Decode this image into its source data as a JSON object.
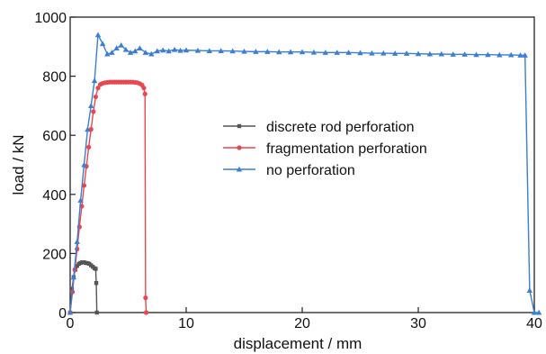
{
  "chart_data": {
    "type": "line",
    "title": "",
    "xlabel": "displacement / mm",
    "ylabel": "load / kN",
    "xlim": [
      0,
      40
    ],
    "ylim": [
      0,
      1000
    ],
    "x_ticks": [
      "0",
      "10",
      "20",
      "30",
      "40"
    ],
    "y_ticks": [
      "0",
      "200",
      "400",
      "600",
      "800",
      "1000"
    ],
    "grid": false,
    "legend_position": "center",
    "series": [
      {
        "name": "discrete rod perforation",
        "color": "#555555",
        "marker": "square",
        "x": [
          0,
          0.15,
          0.3,
          0.45,
          0.6,
          0.75,
          0.9,
          1.05,
          1.2,
          1.35,
          1.5,
          1.65,
          1.8,
          1.95,
          2.1,
          2.2,
          2.25,
          2.3
        ],
        "y": [
          0,
          80,
          120,
          145,
          158,
          165,
          168,
          170,
          170,
          168,
          167,
          165,
          160,
          155,
          150,
          148,
          100,
          0
        ]
      },
      {
        "name": "fragmentation perforation",
        "color": "#e8474f",
        "marker": "circle",
        "x": [
          0,
          0.2,
          0.4,
          0.6,
          0.8,
          1.0,
          1.2,
          1.4,
          1.6,
          1.8,
          2.0,
          2.2,
          2.4,
          2.6,
          2.8,
          3.0,
          3.2,
          3.4,
          3.6,
          3.8,
          4.0,
          4.2,
          4.4,
          4.6,
          4.8,
          5.0,
          5.2,
          5.4,
          5.6,
          5.8,
          6.0,
          6.2,
          6.35,
          6.45,
          6.5,
          6.55
        ],
        "y": [
          0,
          70,
          145,
          215,
          290,
          360,
          430,
          495,
          560,
          620,
          680,
          730,
          760,
          772,
          776,
          778,
          779,
          780,
          780,
          780,
          780,
          780,
          780,
          780,
          780,
          780,
          780,
          780,
          779,
          778,
          775,
          770,
          760,
          740,
          50,
          0
        ]
      },
      {
        "name": "no perforation",
        "color": "#3a7ed6",
        "marker": "triangle",
        "x": [
          0,
          0.3,
          0.6,
          0.9,
          1.2,
          1.5,
          1.8,
          2.1,
          2.4,
          2.8,
          3.2,
          3.6,
          4.0,
          4.4,
          4.8,
          5.2,
          5.6,
          6.0,
          6.5,
          7.0,
          7.5,
          8.0,
          8.5,
          9.0,
          9.5,
          10,
          11,
          12,
          13,
          14,
          15,
          16,
          17,
          18,
          19,
          20,
          21,
          22,
          23,
          24,
          25,
          26,
          27,
          28,
          29,
          30,
          31,
          32,
          33,
          34,
          35,
          36,
          37,
          38,
          38.8,
          39.2,
          39.6,
          40.0,
          40.4
        ],
        "y": [
          0,
          120,
          240,
          380,
          500,
          620,
          700,
          785,
          940,
          910,
          875,
          880,
          895,
          905,
          890,
          880,
          885,
          895,
          880,
          875,
          885,
          888,
          885,
          890,
          887,
          888,
          887,
          886,
          886,
          885,
          884,
          883,
          883,
          882,
          882,
          882,
          881,
          880,
          880,
          880,
          879,
          878,
          878,
          877,
          877,
          876,
          875,
          875,
          874,
          874,
          873,
          873,
          872,
          872,
          871,
          871,
          75,
          0,
          0
        ]
      }
    ]
  }
}
